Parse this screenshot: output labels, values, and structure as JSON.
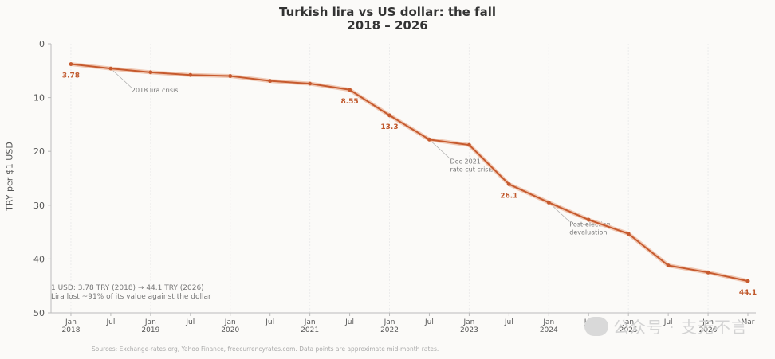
{
  "chart_data": {
    "type": "line",
    "title": "Turkish lira vs US dollar: the fall",
    "subtitle": "2018 – 2026",
    "ylabel": "TRY per $1 USD",
    "ylim": [
      0,
      50
    ],
    "y_inverted": true,
    "y_ticks": [
      0,
      10,
      20,
      30,
      40,
      50
    ],
    "x_ticks": [
      {
        "x": 2018.0,
        "label": "Jan\n2018"
      },
      {
        "x": 2018.5,
        "label": "Jul"
      },
      {
        "x": 2019.0,
        "label": "Jan\n2019"
      },
      {
        "x": 2019.5,
        "label": "Jul"
      },
      {
        "x": 2020.0,
        "label": "Jan\n2020"
      },
      {
        "x": 2020.5,
        "label": "Jul"
      },
      {
        "x": 2021.0,
        "label": "Jan\n2021"
      },
      {
        "x": 2021.5,
        "label": "Jul"
      },
      {
        "x": 2022.0,
        "label": "Jan\n2022"
      },
      {
        "x": 2022.5,
        "label": "Jul"
      },
      {
        "x": 2023.0,
        "label": "Jan\n2023"
      },
      {
        "x": 2023.5,
        "label": "Jul"
      },
      {
        "x": 2024.0,
        "label": "Jan\n2024"
      },
      {
        "x": 2024.5,
        "label": "Jul"
      },
      {
        "x": 2025.0,
        "label": "Jan\n2025"
      },
      {
        "x": 2025.5,
        "label": "Jul"
      },
      {
        "x": 2026.0,
        "label": "Jan\n2026"
      },
      {
        "x": 2026.5,
        "label": "Mar"
      }
    ],
    "xlim": [
      2017.75,
      2026.6
    ],
    "grid": "vertical",
    "series": [
      {
        "color": "#c65a2e",
        "x": [
          2018.0,
          2018.5,
          2019.0,
          2019.5,
          2020.0,
          2020.5,
          2021.0,
          2021.5,
          2022.0,
          2022.5,
          2023.0,
          2023.5,
          2024.0,
          2024.5,
          2025.0,
          2025.5,
          2026.0,
          2026.5
        ],
        "values": [
          3.78,
          4.6,
          5.3,
          5.8,
          6.0,
          6.9,
          7.4,
          8.55,
          13.3,
          17.8,
          18.8,
          26.1,
          29.5,
          32.7,
          35.3,
          41.2,
          42.5,
          44.1
        ]
      }
    ],
    "data_labels": [
      {
        "x": 2018.0,
        "y": 3.78,
        "text": "3.78"
      },
      {
        "x": 2021.5,
        "y": 8.55,
        "text": "8.55"
      },
      {
        "x": 2022.0,
        "y": 13.3,
        "text": "13.3"
      },
      {
        "x": 2023.5,
        "y": 26.1,
        "text": "26.1"
      },
      {
        "x": 2026.5,
        "y": 44.1,
        "text": "44.1"
      }
    ],
    "annotations": [
      {
        "x": 2018.5,
        "y": 4.6,
        "text": "2018 lira crisis"
      },
      {
        "x": 2022.5,
        "y": 17.8,
        "text": "Dec 2021\nrate cut crisis"
      },
      {
        "x": 2024.0,
        "y": 29.5,
        "text": "Post-election\ndevaluation"
      }
    ]
  },
  "summary": {
    "line1": "1 USD: 3.78 TRY (2018) → 44.1 TRY (2026)",
    "line2": "Lira lost ~91% of its value against the dollar"
  },
  "source": "Sources: Exchange-rates.org, Yahoo Finance, freecurrencyrates.com. Data points are approximate mid-month rates.",
  "watermark": {
    "text": "公众号 · 支无不言"
  }
}
